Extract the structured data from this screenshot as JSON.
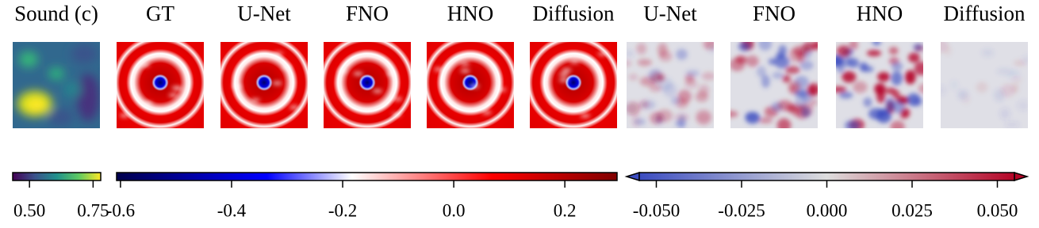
{
  "panels": [
    {
      "title": "Sound (c)"
    },
    {
      "title": "GT"
    },
    {
      "title": "U-Net"
    },
    {
      "title": "FNO"
    },
    {
      "title": "HNO"
    },
    {
      "title": "Diffusion"
    },
    {
      "title": "U-Net"
    },
    {
      "title": "FNO"
    },
    {
      "title": "HNO"
    },
    {
      "title": "Diffusion"
    }
  ],
  "colorbars": [
    {
      "lim": [
        0.434,
        0.78
      ],
      "ticks": [
        {
          "value": 0.5,
          "label": "0.50"
        },
        {
          "value": 0.75,
          "label": "0.75"
        }
      ]
    },
    {
      "lim": [
        -0.607,
        0.294
      ],
      "ticks": [
        -0.6,
        -0.4,
        -0.2,
        {
          "value": 0,
          "label": "0.0"
        },
        0.2
      ]
    },
    {
      "lim": [
        -0.055,
        0.055
      ],
      "ticks": [
        {
          "value": -0.05,
          "label": "-0.050"
        },
        {
          "value": -0.025,
          "label": "-0.025"
        },
        {
          "value": 0,
          "label": "0.000"
        },
        {
          "value": 0.025,
          "label": "0.025"
        },
        {
          "value": 0.05,
          "label": "0.050"
        }
      ]
    }
  ]
}
